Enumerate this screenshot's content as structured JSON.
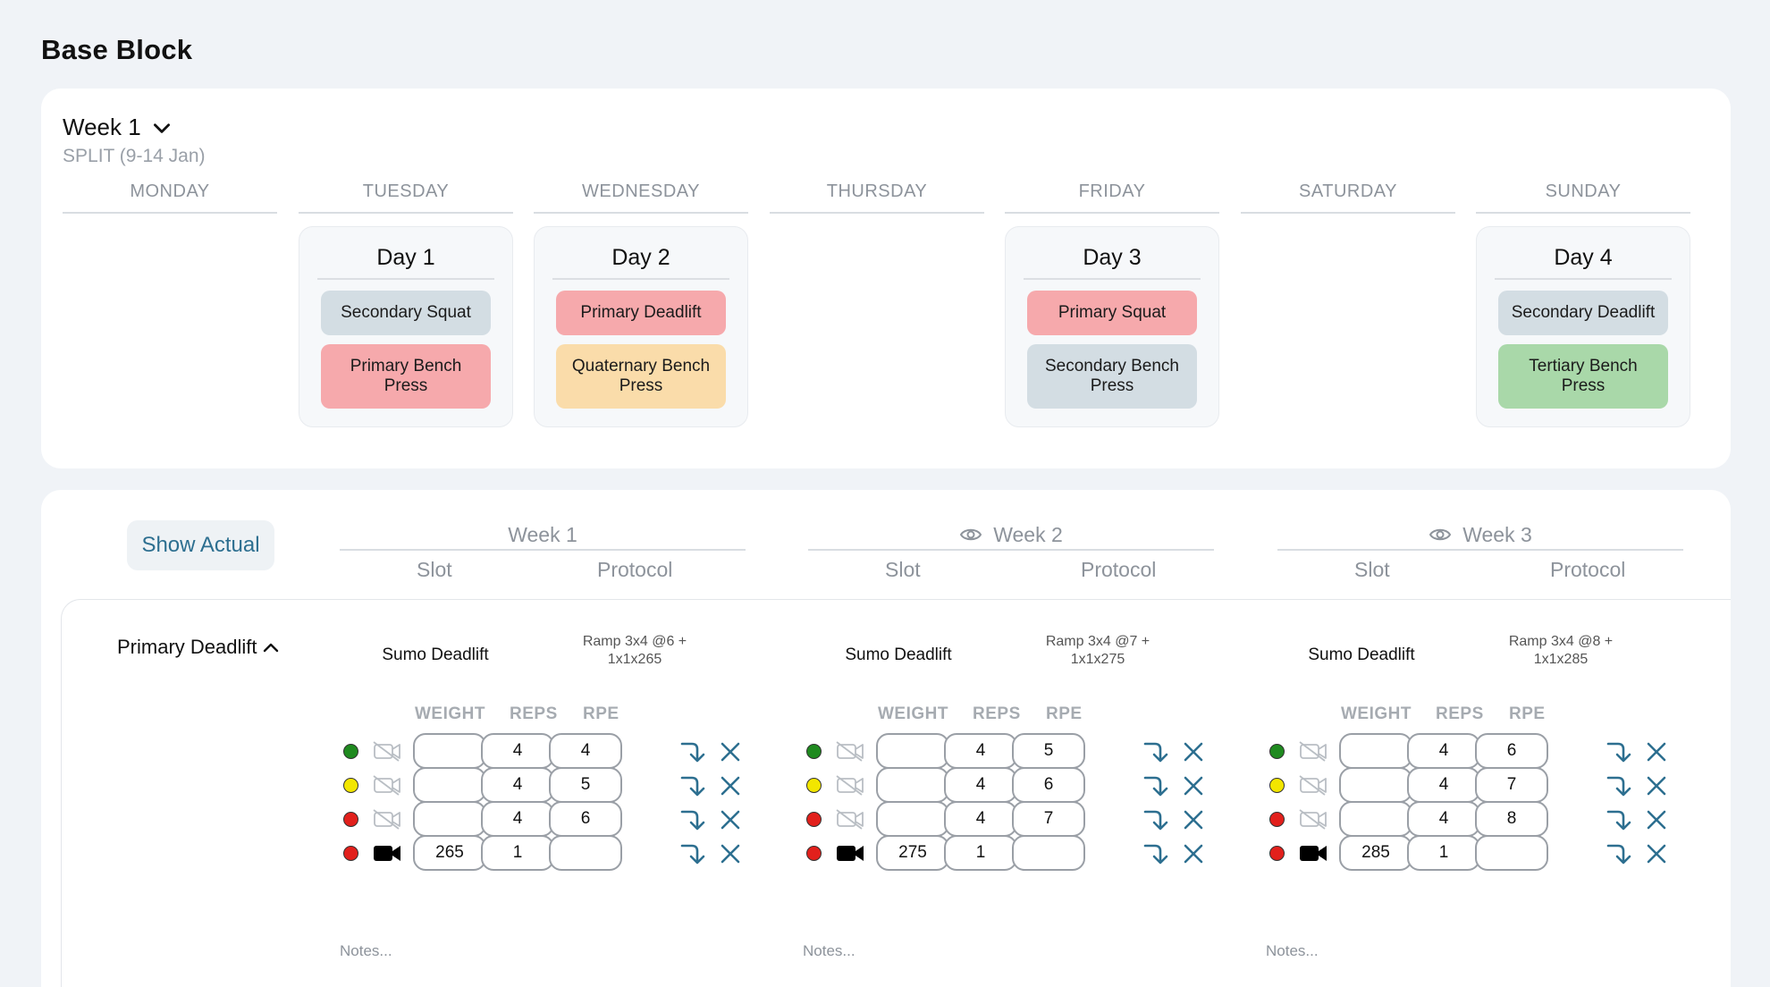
{
  "page": {
    "title": "Base Block"
  },
  "calendar": {
    "week_label": "Week 1",
    "split_label": "SPLIT (9-14 Jan)",
    "days": [
      {
        "name": "MONDAY",
        "card": null
      },
      {
        "name": "TUESDAY",
        "card": {
          "title": "Day 1",
          "lifts": [
            {
              "label": "Secondary Squat",
              "color": "#d3dde3"
            },
            {
              "label": "Primary Bench Press",
              "color": "#f6a9ac"
            }
          ]
        }
      },
      {
        "name": "WEDNESDAY",
        "card": {
          "title": "Day 2",
          "lifts": [
            {
              "label": "Primary Deadlift",
              "color": "#f6a9ac"
            },
            {
              "label": "Quaternary Bench Press",
              "color": "#fadcaa"
            }
          ]
        }
      },
      {
        "name": "THURSDAY",
        "card": null
      },
      {
        "name": "FRIDAY",
        "card": {
          "title": "Day 3",
          "lifts": [
            {
              "label": "Primary Squat",
              "color": "#f6a9ac"
            },
            {
              "label": "Secondary Bench Press",
              "color": "#d3dde3"
            }
          ]
        }
      },
      {
        "name": "SATURDAY",
        "card": null
      },
      {
        "name": "SUNDAY",
        "card": {
          "title": "Day 4",
          "lifts": [
            {
              "label": "Secondary Deadlift",
              "color": "#d3dde3"
            },
            {
              "label": "Tertiary Bench Press",
              "color": "#a9d8a9"
            }
          ]
        }
      }
    ]
  },
  "program": {
    "show_actual_label": "Show Actual",
    "lift_name": "Primary Deadlift",
    "columns": {
      "slot": "Slot",
      "protocol": "Protocol",
      "weight": "WEIGHT",
      "reps": "REPS",
      "rpe": "RPE"
    },
    "notes_placeholder": "Notes...",
    "weeks": [
      {
        "label": "Week 1",
        "has_eye_icon": false,
        "slot": "Sumo Deadlift",
        "protocol": "Ramp 3x4 @6 + 1x1x265",
        "sets": [
          {
            "dot": "green",
            "video": false,
            "weight": "",
            "reps": "4",
            "rpe": "4"
          },
          {
            "dot": "yellow",
            "video": false,
            "weight": "",
            "reps": "4",
            "rpe": "5"
          },
          {
            "dot": "red",
            "video": false,
            "weight": "",
            "reps": "4",
            "rpe": "6"
          },
          {
            "dot": "red",
            "video": true,
            "weight": "265",
            "reps": "1",
            "rpe": ""
          }
        ]
      },
      {
        "label": "Week 2",
        "has_eye_icon": true,
        "slot": "Sumo Deadlift",
        "protocol": "Ramp 3x4 @7 + 1x1x275",
        "sets": [
          {
            "dot": "green",
            "video": false,
            "weight": "",
            "reps": "4",
            "rpe": "5"
          },
          {
            "dot": "yellow",
            "video": false,
            "weight": "",
            "reps": "4",
            "rpe": "6"
          },
          {
            "dot": "red",
            "video": false,
            "weight": "",
            "reps": "4",
            "rpe": "7"
          },
          {
            "dot": "red",
            "video": true,
            "weight": "275",
            "reps": "1",
            "rpe": ""
          }
        ]
      },
      {
        "label": "Week 3",
        "has_eye_icon": true,
        "slot": "Sumo Deadlift",
        "protocol": "Ramp 3x4 @8 + 1x1x285",
        "sets": [
          {
            "dot": "green",
            "video": false,
            "weight": "",
            "reps": "4",
            "rpe": "6"
          },
          {
            "dot": "yellow",
            "video": false,
            "weight": "",
            "reps": "4",
            "rpe": "7"
          },
          {
            "dot": "red",
            "video": false,
            "weight": "",
            "reps": "4",
            "rpe": "8"
          },
          {
            "dot": "red",
            "video": true,
            "weight": "285",
            "reps": "1",
            "rpe": ""
          }
        ]
      }
    ]
  },
  "colors": {
    "accent": "#2d6f90",
    "muted_text": "#8d939b"
  }
}
